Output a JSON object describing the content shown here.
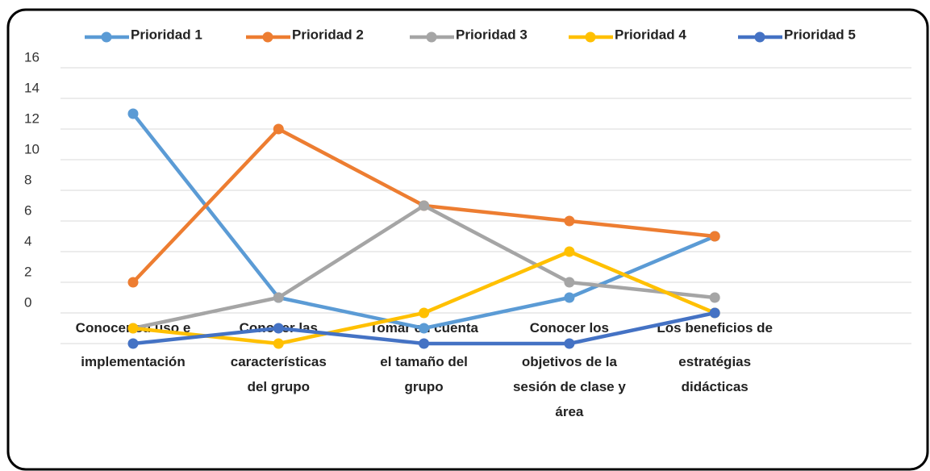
{
  "chart_data": {
    "type": "line",
    "categories": [
      "Conocer su uso e implementación",
      "Conocer las características del grupo",
      "Tomar en cuenta el tamaño del grupo",
      "Conocer los objetivos de la sesión de clase y área",
      "Los beneficios de estratégias didácticas"
    ],
    "series": [
      {
        "name": "Prioridad 1",
        "color": "#5b9bd5",
        "values": [
          13,
          1,
          -1,
          1,
          5
        ]
      },
      {
        "name": "Prioridad 2",
        "color": "#ed7d31",
        "values": [
          2,
          12,
          7,
          6,
          5
        ]
      },
      {
        "name": "Prioridad 3",
        "color": "#a5a5a5",
        "values": [
          -1,
          1,
          7,
          2,
          1
        ]
      },
      {
        "name": "Prioridad 4",
        "color": "#ffc000",
        "values": [
          -1,
          -2,
          0,
          4,
          0
        ]
      },
      {
        "name": "Prioridad 5",
        "color": "#4472c4",
        "values": [
          -2,
          -1,
          -2,
          -2,
          0
        ]
      }
    ],
    "ylim": [
      -2,
      16
    ],
    "yticks": [
      0,
      2,
      4,
      6,
      8,
      10,
      12,
      14,
      16
    ],
    "grid": true,
    "legend": "top"
  }
}
